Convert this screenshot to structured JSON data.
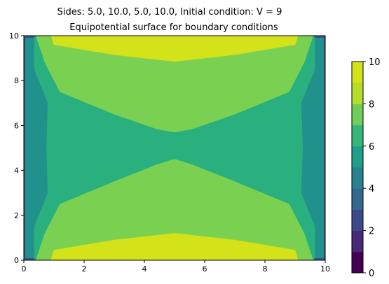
{
  "chart_data": {
    "type": "contourf",
    "title": "Sides: 5.0, 10.0, 5.0, 10.0, Initial condition: V = 9",
    "subtitle": "Equipotential surface for boundary conditions",
    "xlabel": "",
    "ylabel": "",
    "xlim": [
      0,
      10
    ],
    "ylim": [
      0,
      10
    ],
    "xticks": [
      0,
      2,
      4,
      6,
      8,
      10
    ],
    "yticks": [
      0,
      2,
      4,
      6,
      8,
      10
    ],
    "colormap": "viridis",
    "colorbar": {
      "ticks": [
        0,
        2,
        4,
        6,
        8,
        10
      ],
      "range": [
        0,
        10
      ]
    },
    "levels": [
      {
        "min": 0,
        "max": 1,
        "color": "#440154"
      },
      {
        "min": 1,
        "max": 2,
        "color": "#482878"
      },
      {
        "min": 2,
        "max": 3,
        "color": "#3e4989"
      },
      {
        "min": 3,
        "max": 4,
        "color": "#31688e"
      },
      {
        "min": 4,
        "max": 5,
        "color": "#26828e"
      },
      {
        "min": 5,
        "max": 6,
        "color": "#1f9e89"
      },
      {
        "min": 6,
        "max": 7,
        "color": "#35b779"
      },
      {
        "min": 7,
        "max": 8,
        "color": "#6ece58"
      },
      {
        "min": 8,
        "max": 9,
        "color": "#b5de2b"
      },
      {
        "min": 9,
        "max": 10,
        "color": "#d4e21a"
      }
    ],
    "boundary_conditions": {
      "bottom": 10.0,
      "top": 10.0,
      "left": 5.0,
      "right": 5.0
    },
    "regions": [
      {
        "level": "5-6",
        "color": "#21918c",
        "points": [
          [
            0.05,
            0.1
          ],
          [
            9.95,
            0.1
          ],
          [
            9.95,
            9.9
          ],
          [
            0.05,
            9.9
          ]
        ]
      },
      {
        "level": "6-7",
        "color": "#2ab07f",
        "points": [
          [
            0.35,
            0.05
          ],
          [
            9.65,
            0.05
          ],
          [
            9.65,
            1.5
          ],
          [
            9.2,
            3
          ],
          [
            9.25,
            5
          ],
          [
            9.2,
            7
          ],
          [
            9.65,
            8.5
          ],
          [
            9.65,
            9.95
          ],
          [
            0.35,
            9.95
          ],
          [
            0.35,
            8.5
          ],
          [
            0.8,
            7
          ],
          [
            0.75,
            5
          ],
          [
            0.8,
            3
          ],
          [
            0.35,
            1.5
          ]
        ]
      },
      {
        "level": "7-8",
        "color": "#7ad151",
        "points": [
          [
            0.4,
            0.0
          ],
          [
            9.6,
            0.0
          ],
          [
            9.3,
            1.2
          ],
          [
            8.8,
            2.5
          ],
          [
            7.0,
            3.5
          ],
          [
            5.6,
            4.25
          ],
          [
            5.0,
            4.5
          ],
          [
            4.4,
            4.25
          ],
          [
            3.0,
            3.5
          ],
          [
            1.2,
            2.5
          ],
          [
            0.7,
            1.2
          ]
        ]
      },
      {
        "level": "7-8",
        "color": "#7ad151",
        "points": [
          [
            0.4,
            10.0
          ],
          [
            9.6,
            10.0
          ],
          [
            9.3,
            8.8
          ],
          [
            8.8,
            7.5
          ],
          [
            7.0,
            6.5
          ],
          [
            5.6,
            5.85
          ],
          [
            5.0,
            5.7
          ],
          [
            4.4,
            5.85
          ],
          [
            3.0,
            6.5
          ],
          [
            1.2,
            7.5
          ],
          [
            0.7,
            8.8
          ]
        ]
      },
      {
        "level": "8-9",
        "color": "#d4e21a",
        "points": [
          [
            0.9,
            0.0
          ],
          [
            9.1,
            0.0
          ],
          [
            9.0,
            0.45
          ],
          [
            7.0,
            0.9
          ],
          [
            5.0,
            1.2
          ],
          [
            3.0,
            0.9
          ],
          [
            1.0,
            0.45
          ]
        ]
      },
      {
        "level": "8-9",
        "color": "#d4e21a",
        "points": [
          [
            0.9,
            10.0
          ],
          [
            9.1,
            10.0
          ],
          [
            9.0,
            9.6
          ],
          [
            7.0,
            9.15
          ],
          [
            5.0,
            8.85
          ],
          [
            3.0,
            9.15
          ],
          [
            1.0,
            9.6
          ]
        ]
      }
    ]
  }
}
